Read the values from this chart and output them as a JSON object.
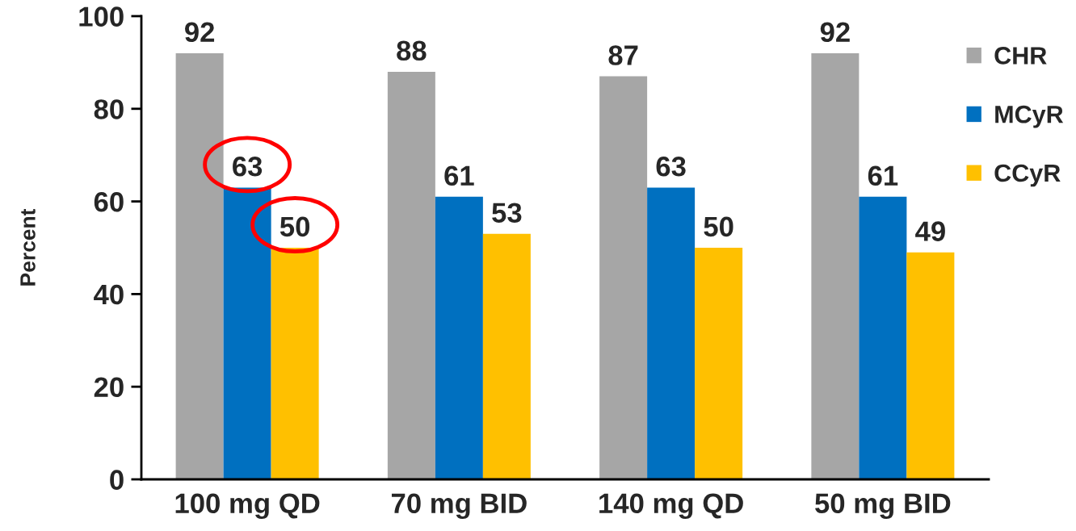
{
  "chart_data": {
    "type": "bar",
    "ylabel": "Percent",
    "categories": [
      "100 mg QD",
      "70 mg BID",
      "140 mg QD",
      "50 mg BID"
    ],
    "series": [
      {
        "name": "CHR",
        "color": "#a6a6a6",
        "values": [
          92,
          88,
          87,
          92
        ]
      },
      {
        "name": "MCyR",
        "color": "#0070c0",
        "values": [
          63,
          61,
          63,
          61
        ]
      },
      {
        "name": "CCyR",
        "color": "#ffc000",
        "values": [
          50,
          53,
          50,
          49
        ]
      }
    ],
    "ylim": [
      0,
      100
    ],
    "yticks": [
      0,
      20,
      40,
      60,
      80,
      100
    ],
    "data_labels": true,
    "grid": false,
    "legend": "top right"
  }
}
